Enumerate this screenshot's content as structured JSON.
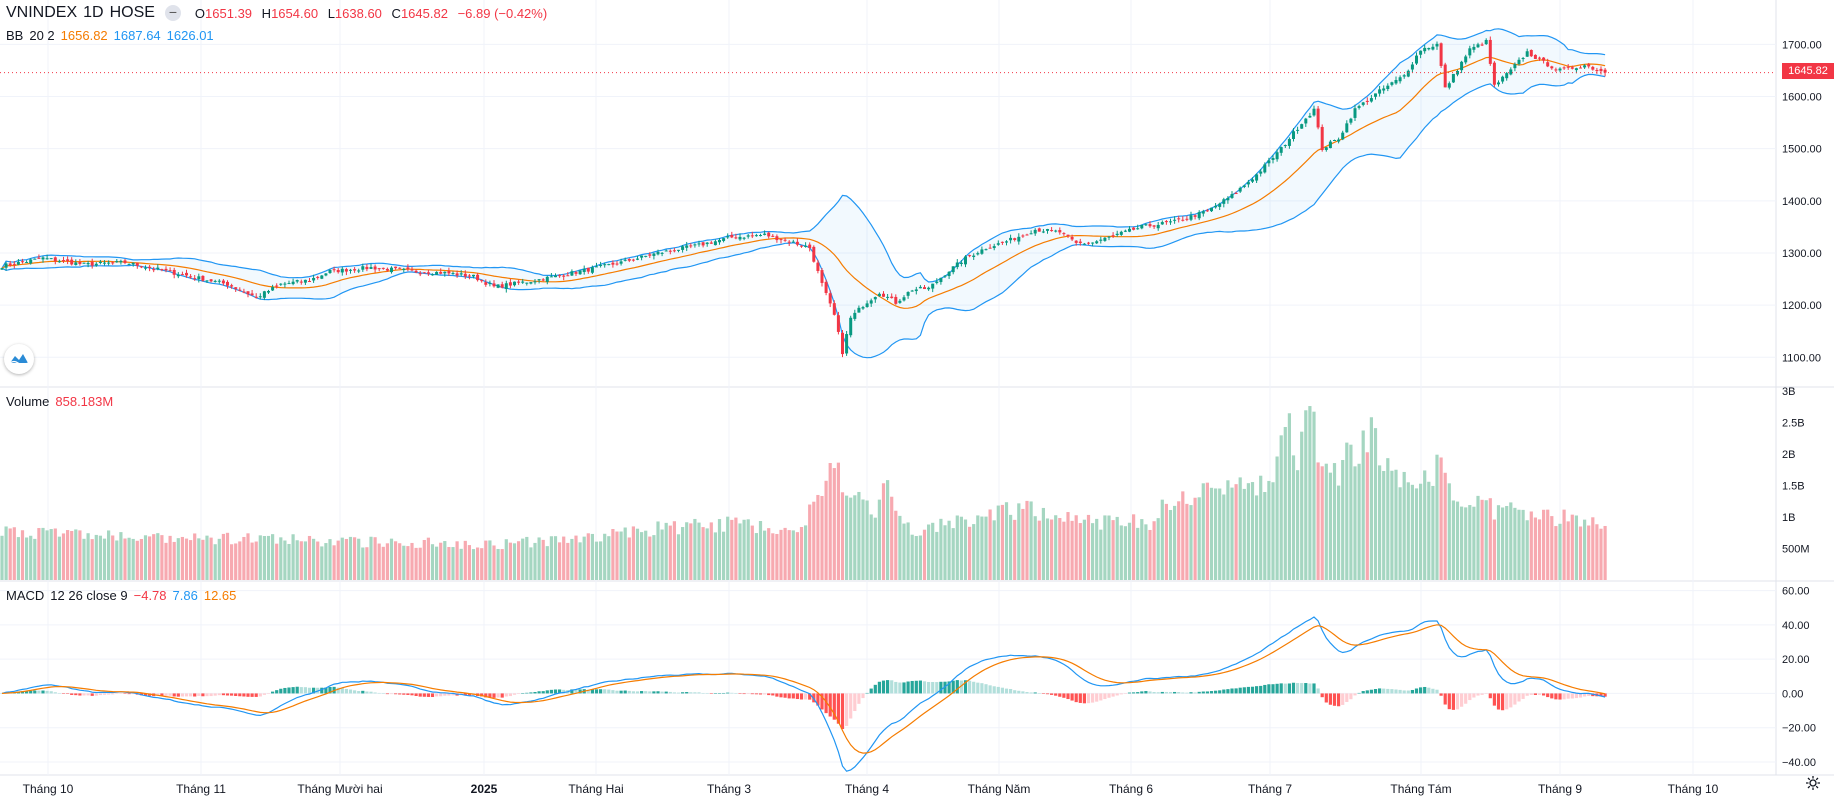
{
  "header": {
    "symbol": "VNINDEX",
    "interval": "1D",
    "exchange": "HOSE",
    "collapse_icon": "minus-icon",
    "open_label": "O",
    "open": "1651.39",
    "high_label": "H",
    "high": "1654.60",
    "low_label": "L",
    "low": "1638.60",
    "close_label": "C",
    "close": "1645.82",
    "change": "−6.89 (−0.42%)"
  },
  "bb_legend": {
    "name": "BB",
    "params": "20 2",
    "basis": "1656.82",
    "upper": "1687.64",
    "lower": "1626.01"
  },
  "volume_legend": {
    "name": "Volume",
    "value": "858.183M"
  },
  "macd_legend": {
    "name": "MACD",
    "params": "12 26 close 9",
    "hist": "−4.78",
    "macd": "7.86",
    "signal": "12.65"
  },
  "last_price_tag": "1645.82",
  "colors": {
    "up": "#089981",
    "down": "#f23645",
    "vol_up": "#a5d6c1",
    "vol_down": "#f7a9b0",
    "bb_basis": "#f57c00",
    "bb_band": "#2196f3",
    "macd_line": "#2196f3",
    "signal_line": "#f57c00"
  },
  "icons": {
    "logo": "tradingview-logo-icon",
    "settings": "gear-icon"
  },
  "chart_data": [
    {
      "type": "candlestick",
      "panel": "price",
      "x_ticks": [
        "Tháng 10",
        "Tháng 11",
        "Tháng Mười hai",
        "2025",
        "Tháng Hai",
        "Tháng 3",
        "Tháng 4",
        "Tháng Năm",
        "Tháng 6",
        "Tháng 7",
        "Tháng Tám",
        "Tháng 9",
        "Tháng 10"
      ],
      "y_ticks": [
        "1700.00",
        "1600.00",
        "1500.00",
        "1400.00",
        "1300.00",
        "1200.00",
        "1100.00"
      ],
      "ylim": [
        1045,
        1785
      ],
      "close_keypoints": [
        [
          0,
          1275
        ],
        [
          10,
          1290
        ],
        [
          20,
          1278
        ],
        [
          30,
          1282
        ],
        [
          40,
          1265
        ],
        [
          48,
          1252
        ],
        [
          55,
          1240
        ],
        [
          62,
          1215
        ],
        [
          68,
          1240
        ],
        [
          75,
          1248
        ],
        [
          80,
          1265
        ],
        [
          90,
          1272
        ],
        [
          100,
          1265
        ],
        [
          108,
          1262
        ],
        [
          115,
          1255
        ],
        [
          120,
          1235
        ],
        [
          128,
          1245
        ],
        [
          135,
          1255
        ],
        [
          143,
          1268
        ],
        [
          150,
          1280
        ],
        [
          160,
          1300
        ],
        [
          170,
          1315
        ],
        [
          178,
          1330
        ],
        [
          186,
          1335
        ],
        [
          193,
          1320
        ],
        [
          197,
          1310
        ],
        [
          200,
          1240
        ],
        [
          203,
          1180
        ],
        [
          205,
          1110
        ],
        [
          207,
          1175
        ],
        [
          210,
          1200
        ],
        [
          214,
          1225
        ],
        [
          218,
          1205
        ],
        [
          222,
          1230
        ],
        [
          226,
          1232
        ],
        [
          230,
          1260
        ],
        [
          235,
          1290
        ],
        [
          240,
          1310
        ],
        [
          246,
          1325
        ],
        [
          252,
          1345
        ],
        [
          258,
          1340
        ],
        [
          262,
          1318
        ],
        [
          266,
          1320
        ],
        [
          270,
          1330
        ],
        [
          278,
          1350
        ],
        [
          286,
          1360
        ],
        [
          294,
          1380
        ],
        [
          300,
          1410
        ],
        [
          306,
          1450
        ],
        [
          312,
          1500
        ],
        [
          317,
          1550
        ],
        [
          320,
          1575
        ],
        [
          322,
          1500
        ],
        [
          326,
          1520
        ],
        [
          330,
          1575
        ],
        [
          336,
          1610
        ],
        [
          342,
          1640
        ],
        [
          346,
          1690
        ],
        [
          350,
          1700
        ],
        [
          352,
          1615
        ],
        [
          358,
          1690
        ],
        [
          362,
          1705
        ],
        [
          364,
          1620
        ],
        [
          368,
          1650
        ],
        [
          372,
          1685
        ],
        [
          376,
          1665
        ],
        [
          380,
          1650
        ],
        [
          386,
          1660
        ],
        [
          391,
          1646
        ]
      ]
    },
    {
      "type": "line",
      "panel": "bollinger_bands",
      "series": [
        {
          "name": "basis",
          "source": "SMA(close, 20)"
        },
        {
          "name": "upper",
          "source": "basis + 2σ"
        },
        {
          "name": "lower",
          "source": "basis − 2σ"
        }
      ]
    },
    {
      "type": "bar",
      "panel": "volume",
      "y_ticks": [
        "3B",
        "2.5B",
        "2B",
        "1.5B",
        "1B",
        "500M"
      ],
      "ylim": [
        0,
        3050000000
      ],
      "volume_keypoints": [
        [
          0,
          800
        ],
        [
          20,
          720
        ],
        [
          40,
          640
        ],
        [
          60,
          660
        ],
        [
          80,
          610
        ],
        [
          100,
          600
        ],
        [
          120,
          570
        ],
        [
          140,
          640
        ],
        [
          160,
          820
        ],
        [
          180,
          900
        ],
        [
          195,
          780
        ],
        [
          199,
          1400
        ],
        [
          202,
          1800
        ],
        [
          205,
          1600
        ],
        [
          208,
          1500
        ],
        [
          212,
          1000
        ],
        [
          216,
          1500
        ],
        [
          220,
          800
        ],
        [
          230,
          850
        ],
        [
          240,
          1080
        ],
        [
          250,
          1100
        ],
        [
          260,
          1050
        ],
        [
          270,
          900
        ],
        [
          280,
          930
        ],
        [
          285,
          1280
        ],
        [
          290,
          1400
        ],
        [
          300,
          1420
        ],
        [
          306,
          1500
        ],
        [
          310,
          1600
        ],
        [
          313,
          2780
        ],
        [
          316,
          1700
        ],
        [
          319,
          2780
        ],
        [
          322,
          1600
        ],
        [
          326,
          1700
        ],
        [
          330,
          2100
        ],
        [
          334,
          2360
        ],
        [
          338,
          1850
        ],
        [
          342,
          1600
        ],
        [
          346,
          1480
        ],
        [
          350,
          1850
        ],
        [
          356,
          1250
        ],
        [
          362,
          1150
        ],
        [
          370,
          1050
        ],
        [
          380,
          1000
        ],
        [
          391,
          858
        ]
      ],
      "volume_unit": "M"
    },
    {
      "type": "line",
      "panel": "macd",
      "y_ticks": [
        "60.00",
        "40.00",
        "20.00",
        "0.00",
        "−20.00",
        "−40.00"
      ],
      "ylim": [
        -47,
        65
      ],
      "series": [
        {
          "name": "macd",
          "source": "EMA(12) − EMA(26)"
        },
        {
          "name": "signal",
          "source": "EMA(macd, 9)"
        },
        {
          "name": "histogram",
          "source": "macd − signal"
        }
      ]
    }
  ]
}
